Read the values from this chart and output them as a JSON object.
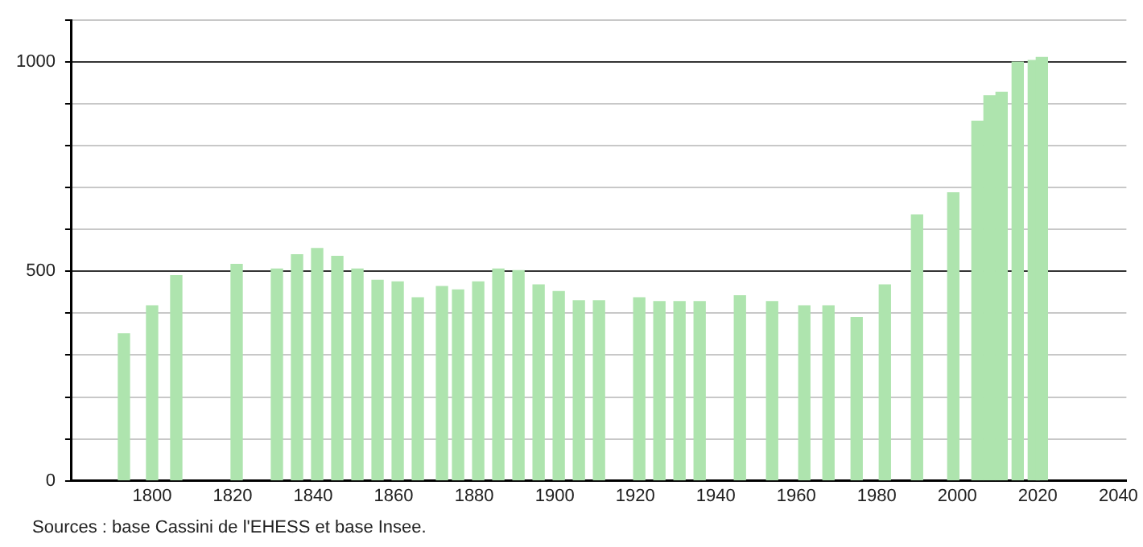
{
  "chart_data": {
    "type": "bar",
    "annotations": [
      "Sources : base Cassini de l'EHESS et base Insee."
    ],
    "x": [
      1793,
      1800,
      1806,
      1821,
      1831,
      1836,
      1841,
      1846,
      1851,
      1856,
      1861,
      1866,
      1872,
      1876,
      1881,
      1886,
      1891,
      1896,
      1901,
      1906,
      1911,
      1921,
      1926,
      1931,
      1936,
      1946,
      1954,
      1962,
      1968,
      1975,
      1982,
      1990,
      1999,
      2005,
      2008,
      2011,
      2015,
      2019,
      2021
    ],
    "values": [
      351,
      418,
      490,
      517,
      506,
      540,
      555,
      536,
      506,
      479,
      475,
      437,
      464,
      456,
      475,
      506,
      502,
      468,
      452,
      430,
      430,
      437,
      428,
      428,
      428,
      442,
      428,
      418,
      418,
      390,
      468,
      635,
      688,
      859,
      920,
      928,
      1000,
      1004,
      1011
    ],
    "color": "#aee4ae",
    "xlim": [
      1780,
      2042
    ],
    "xticks": [
      1800,
      1820,
      1840,
      1860,
      1880,
      1900,
      1920,
      1940,
      1960,
      1980,
      2000,
      2020,
      2040
    ],
    "ylim": [
      0,
      1100
    ],
    "yticks": [
      0,
      {
        "value": 100,
        "label": null
      },
      {
        "value": 200,
        "label": null
      },
      {
        "value": 300,
        "label": null
      },
      {
        "value": 400,
        "label": null
      },
      500,
      {
        "value": 600,
        "label": null
      },
      {
        "value": 700,
        "label": null
      },
      {
        "value": 800,
        "label": null
      },
      {
        "value": 900,
        "label": null
      },
      1000,
      {
        "value": 1100,
        "label": null
      }
    ],
    "grid": "y"
  }
}
